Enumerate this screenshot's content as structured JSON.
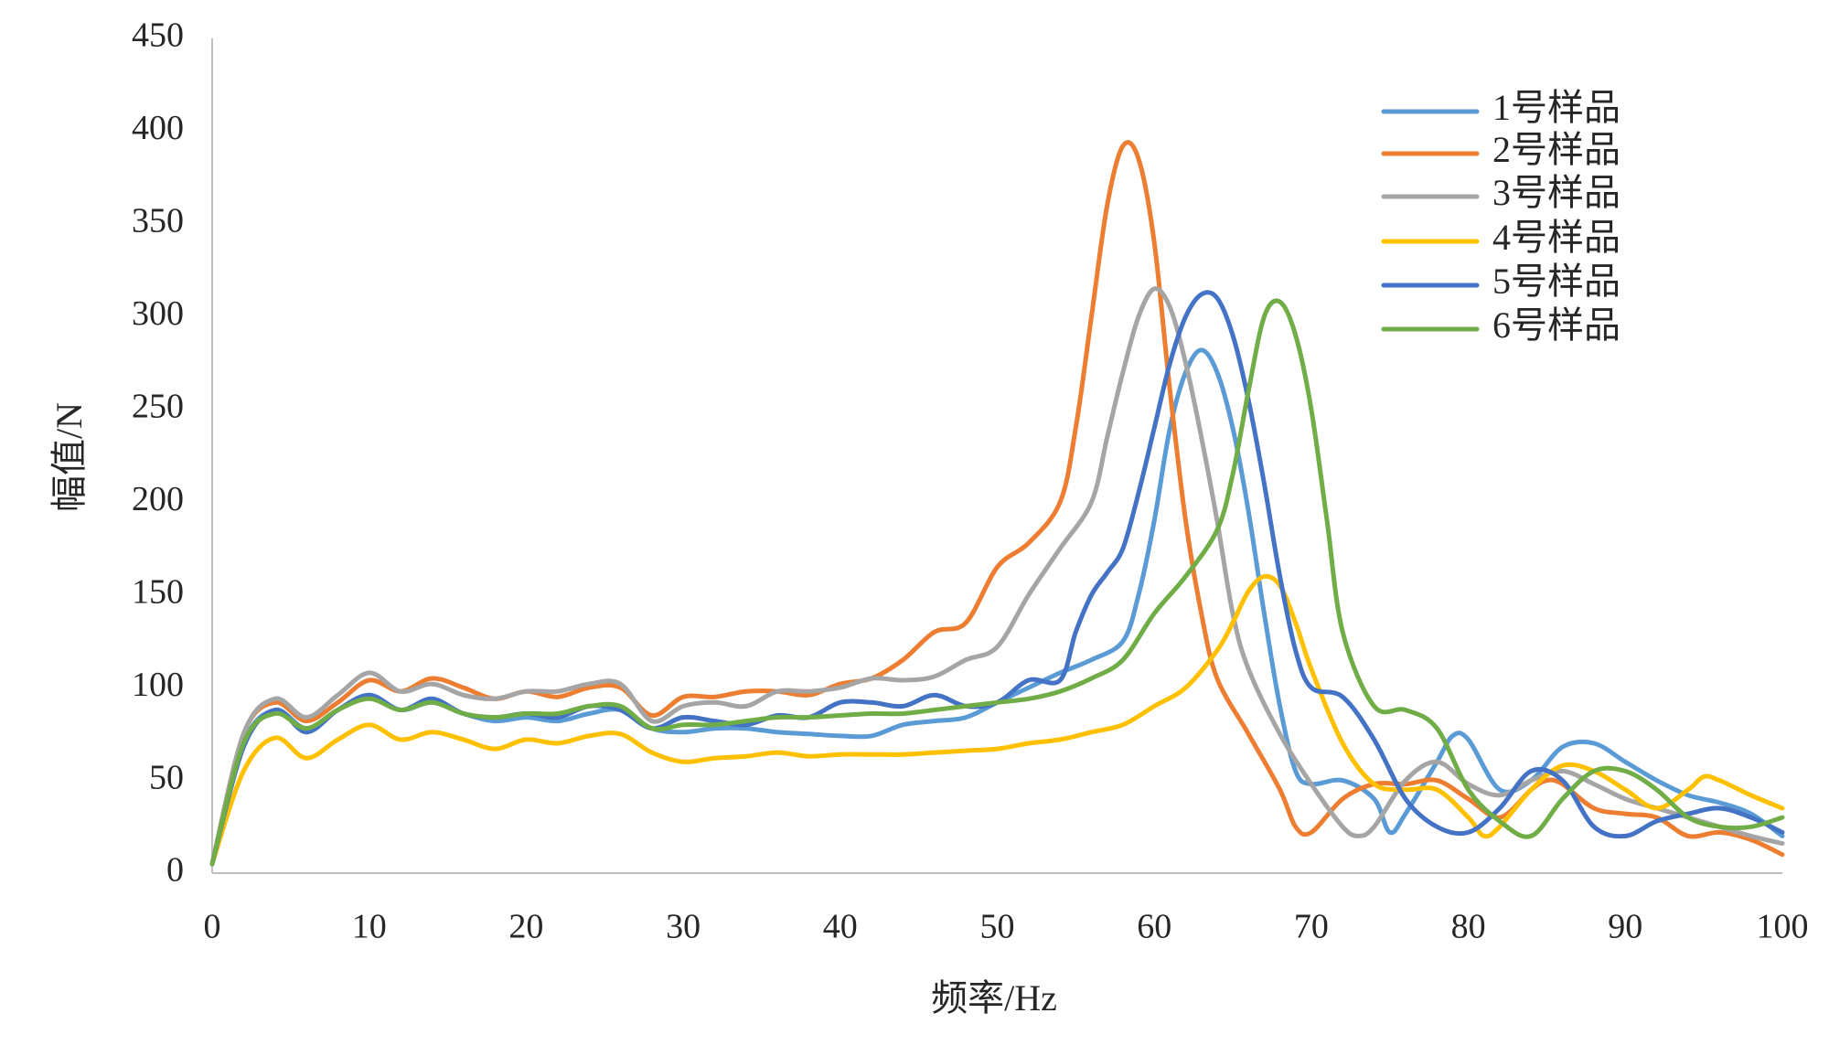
{
  "chart_data": {
    "type": "line",
    "title": "",
    "xlabel": "频率/Hz",
    "ylabel": "幅值/N",
    "xlim": [
      0,
      100
    ],
    "ylim": [
      0,
      450
    ],
    "xticks": [
      0,
      10,
      20,
      30,
      40,
      50,
      60,
      70,
      80,
      90,
      100
    ],
    "yticks": [
      0,
      50,
      100,
      150,
      200,
      250,
      300,
      350,
      400,
      450
    ],
    "grid": false,
    "legend_position": "top-right",
    "series": [
      {
        "name": "1号样品",
        "color": "#5B9BD5",
        "x": [
          0,
          2,
          4,
          6,
          8,
          10,
          12,
          14,
          16,
          18,
          20,
          22,
          24,
          26,
          28,
          30,
          32,
          34,
          36,
          38,
          40,
          42,
          44,
          46,
          48,
          50,
          52,
          54,
          56,
          58,
          59,
          60,
          61,
          62,
          63,
          64,
          65,
          66,
          67,
          68,
          69,
          70,
          72,
          74,
          75,
          76,
          78,
          79,
          80,
          82,
          84,
          86,
          88,
          90,
          92,
          94,
          96,
          98,
          100
        ],
        "values": [
          5,
          70,
          88,
          78,
          88,
          96,
          88,
          92,
          86,
          82,
          84,
          82,
          86,
          88,
          78,
          76,
          78,
          78,
          76,
          75,
          74,
          74,
          80,
          82,
          84,
          92,
          100,
          108,
          115,
          125,
          150,
          190,
          240,
          270,
          282,
          270,
          240,
          195,
          140,
          90,
          55,
          48,
          50,
          40,
          22,
          32,
          60,
          74,
          72,
          45,
          50,
          68,
          70,
          60,
          50,
          42,
          38,
          32,
          20
        ]
      },
      {
        "name": "2号样品",
        "color": "#ED7D31",
        "x": [
          0,
          2,
          4,
          6,
          8,
          10,
          12,
          14,
          16,
          18,
          20,
          22,
          24,
          26,
          28,
          30,
          32,
          34,
          36,
          38,
          40,
          42,
          44,
          46,
          48,
          50,
          52,
          54,
          55,
          56,
          57,
          58,
          59,
          60,
          61,
          62,
          63,
          64,
          66,
          68,
          69,
          70,
          72,
          74,
          76,
          78,
          80,
          82,
          84,
          85,
          86,
          88,
          90,
          92,
          94,
          96,
          98,
          100
        ],
        "values": [
          5,
          75,
          92,
          82,
          92,
          104,
          98,
          105,
          100,
          94,
          98,
          95,
          100,
          100,
          85,
          95,
          95,
          98,
          98,
          96,
          102,
          105,
          115,
          130,
          135,
          165,
          178,
          200,
          240,
          300,
          360,
          392,
          385,
          340,
          260,
          190,
          140,
          105,
          75,
          45,
          25,
          22,
          40,
          48,
          48,
          50,
          40,
          30,
          45,
          50,
          48,
          35,
          32,
          30,
          20,
          22,
          18,
          10
        ]
      },
      {
        "name": "3号样品",
        "color": "#A5A5A5",
        "x": [
          0,
          2,
          4,
          6,
          8,
          10,
          12,
          14,
          16,
          18,
          20,
          22,
          24,
          26,
          28,
          30,
          32,
          34,
          36,
          38,
          40,
          42,
          44,
          46,
          48,
          50,
          52,
          54,
          56,
          57,
          58,
          59,
          60,
          61,
          62,
          63,
          64,
          65,
          66,
          68,
          70,
          72,
          73,
          74,
          76,
          78,
          80,
          82,
          84,
          86,
          88,
          90,
          92,
          94,
          96,
          98,
          100
        ],
        "values": [
          5,
          75,
          94,
          84,
          96,
          108,
          98,
          102,
          96,
          94,
          98,
          98,
          102,
          102,
          82,
          90,
          92,
          90,
          98,
          98,
          100,
          105,
          104,
          106,
          115,
          122,
          150,
          175,
          200,
          235,
          270,
          300,
          315,
          305,
          275,
          235,
          190,
          140,
          110,
          75,
          48,
          25,
          20,
          25,
          50,
          60,
          48,
          42,
          50,
          55,
          48,
          40,
          35,
          30,
          25,
          20,
          16
        ]
      },
      {
        "name": "4号样品",
        "color": "#FFC000",
        "x": [
          0,
          2,
          4,
          6,
          8,
          10,
          12,
          14,
          16,
          18,
          20,
          22,
          24,
          26,
          28,
          30,
          32,
          34,
          36,
          38,
          40,
          42,
          44,
          46,
          48,
          50,
          52,
          54,
          56,
          58,
          60,
          62,
          64,
          65,
          66,
          67,
          68,
          69,
          70,
          72,
          74,
          76,
          78,
          80,
          81,
          82,
          84,
          86,
          88,
          90,
          92,
          94,
          95,
          96,
          98,
          100
        ],
        "values": [
          5,
          55,
          73,
          62,
          72,
          80,
          72,
          76,
          72,
          67,
          72,
          70,
          74,
          75,
          65,
          60,
          62,
          63,
          65,
          63,
          64,
          64,
          64,
          65,
          66,
          67,
          70,
          72,
          76,
          80,
          90,
          100,
          120,
          135,
          152,
          160,
          155,
          135,
          110,
          70,
          48,
          45,
          45,
          30,
          20,
          25,
          45,
          58,
          55,
          45,
          35,
          45,
          52,
          50,
          42,
          35
        ]
      },
      {
        "name": "5号样品",
        "color": "#4472C4",
        "x": [
          0,
          2,
          4,
          6,
          8,
          10,
          12,
          14,
          16,
          18,
          20,
          22,
          24,
          26,
          28,
          30,
          32,
          34,
          36,
          38,
          40,
          42,
          44,
          46,
          48,
          50,
          52,
          54,
          55,
          56,
          57,
          58,
          59,
          60,
          61,
          62,
          63,
          64,
          65,
          66,
          67,
          68,
          69,
          70,
          72,
          74,
          76,
          78,
          80,
          82,
          84,
          86,
          88,
          90,
          92,
          94,
          96,
          98,
          100
        ],
        "values": [
          5,
          68,
          88,
          76,
          88,
          96,
          88,
          94,
          86,
          84,
          86,
          84,
          90,
          88,
          78,
          84,
          82,
          80,
          85,
          84,
          92,
          92,
          90,
          96,
          90,
          92,
          104,
          104,
          130,
          150,
          162,
          175,
          205,
          240,
          275,
          300,
          312,
          310,
          290,
          255,
          210,
          160,
          120,
          100,
          95,
          72,
          40,
          25,
          22,
          35,
          55,
          50,
          25,
          20,
          28,
          32,
          35,
          30,
          22
        ]
      },
      {
        "name": "6号样品",
        "color": "#70AD47",
        "x": [
          0,
          2,
          4,
          6,
          8,
          10,
          12,
          14,
          16,
          18,
          20,
          22,
          24,
          26,
          28,
          30,
          32,
          34,
          36,
          38,
          40,
          42,
          44,
          46,
          48,
          50,
          52,
          54,
          56,
          58,
          60,
          62,
          64,
          65,
          66,
          67,
          68,
          69,
          70,
          71,
          72,
          74,
          76,
          78,
          80,
          82,
          84,
          86,
          88,
          90,
          92,
          94,
          96,
          98,
          100
        ],
        "values": [
          5,
          70,
          86,
          78,
          88,
          94,
          88,
          92,
          86,
          84,
          86,
          86,
          90,
          90,
          78,
          80,
          80,
          82,
          84,
          84,
          85,
          86,
          86,
          88,
          90,
          92,
          94,
          98,
          105,
          115,
          140,
          160,
          185,
          215,
          260,
          300,
          308,
          290,
          250,
          190,
          130,
          90,
          88,
          78,
          45,
          28,
          20,
          40,
          55,
          55,
          45,
          30,
          25,
          25,
          30
        ]
      }
    ]
  }
}
